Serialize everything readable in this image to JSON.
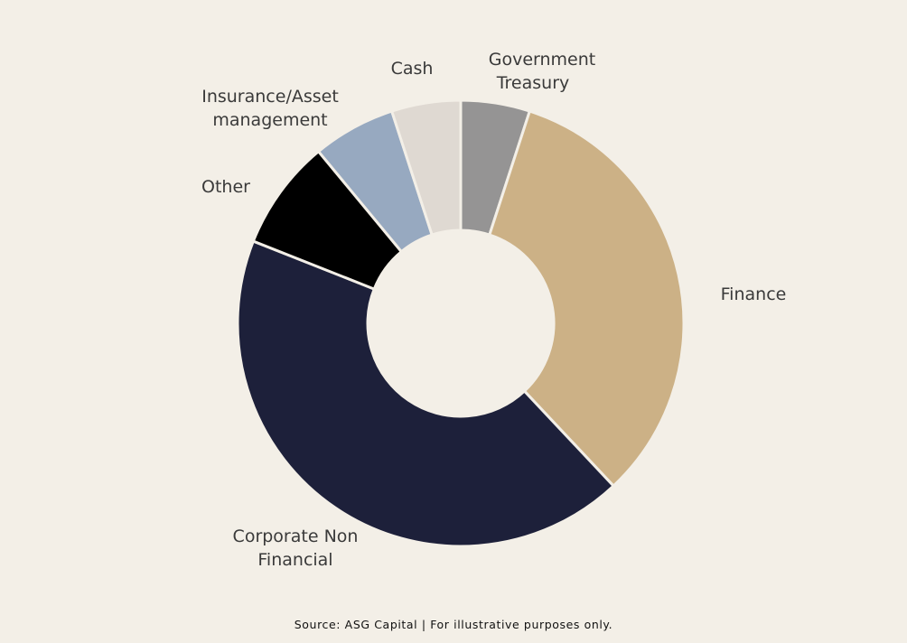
{
  "chart_data": {
    "type": "pie",
    "variant": "donut",
    "start": "12 o'clock, clockwise",
    "slices": [
      {
        "label": "Government Treasury",
        "value": 5,
        "color": "#959494"
      },
      {
        "label": "Finance",
        "value": 33,
        "color": "#ccb186"
      },
      {
        "label": "Corporate Non Financial",
        "value": 43,
        "color": "#1d203a"
      },
      {
        "label": "Other",
        "value": 8,
        "color": "#000000"
      },
      {
        "label": "Insurance/Asset management",
        "value": 6,
        "color": "#97a9c0"
      },
      {
        "label": "Cash",
        "value": 5,
        "color": "#dfd9d2"
      }
    ],
    "legend": "none (direct labels)"
  },
  "footer": {
    "source": "Source: ASG Capital | For illustrative purposes only."
  }
}
